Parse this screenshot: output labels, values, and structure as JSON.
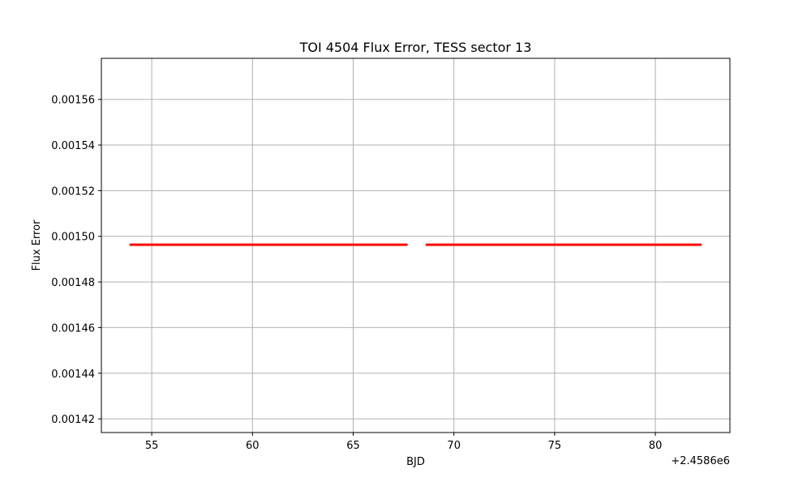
{
  "chart_data": {
    "type": "scatter",
    "title": "TOI 4504 Flux Error, TESS sector 13",
    "xlabel": "BJD",
    "ylabel": "Flux Error",
    "x_offset_label": "+2.4586e6",
    "x_offset": 2458600,
    "xlim": [
      2458652.5,
      2458683.7
    ],
    "ylim": [
      0.001414,
      0.001578
    ],
    "xticks": [
      {
        "value": 2458655,
        "label": "55"
      },
      {
        "value": 2458660,
        "label": "60"
      },
      {
        "value": 2458665,
        "label": "65"
      },
      {
        "value": 2458670,
        "label": "70"
      },
      {
        "value": 2458675,
        "label": "75"
      },
      {
        "value": 2458680,
        "label": "80"
      }
    ],
    "yticks": [
      {
        "value": 0.00142,
        "label": "0.00142"
      },
      {
        "value": 0.00144,
        "label": "0.00144"
      },
      {
        "value": 0.00146,
        "label": "0.00146"
      },
      {
        "value": 0.00148,
        "label": "0.00148"
      },
      {
        "value": 0.0015,
        "label": "0.00150"
      },
      {
        "value": 0.00152,
        "label": "0.00152"
      },
      {
        "value": 0.00154,
        "label": "0.00154"
      },
      {
        "value": 0.00156,
        "label": "0.00156"
      }
    ],
    "grid": true,
    "series": [
      {
        "color": "#ff0000",
        "segments": [
          {
            "x_start": 2458653.9,
            "x_end": 2458667.7,
            "y": 0.0014963
          },
          {
            "x_start": 2458668.6,
            "x_end": 2458682.3,
            "y": 0.0014963
          }
        ]
      }
    ]
  }
}
